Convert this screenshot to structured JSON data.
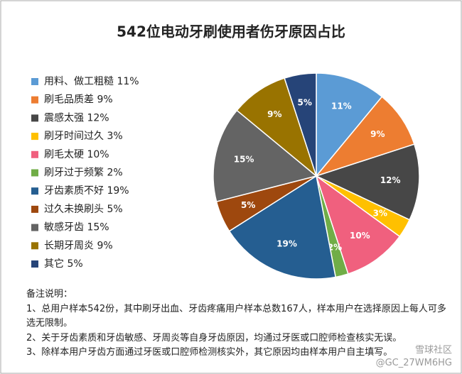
{
  "chart_data": {
    "type": "pie",
    "title": "542位电动牙刷使用者伤牙原因占比",
    "categories": [
      "用料、做工粗糙",
      "刷毛品质差",
      "震感太强",
      "刷牙时间过久",
      "刷毛太硬",
      "刷牙过于频繁",
      "牙齿素质不好",
      "过久未换刷头",
      "敏感牙齿",
      "长期牙周炎",
      "其它"
    ],
    "values": [
      11,
      9,
      12,
      3,
      10,
      2,
      19,
      5,
      15,
      9,
      5
    ],
    "value_labels": [
      "11%",
      "9%",
      "12%",
      "3%",
      "10%",
      "2%",
      "19%",
      "5%",
      "15%",
      "9%",
      "5%"
    ],
    "colors": [
      "#5b9bd5",
      "#ed7d31",
      "#474747",
      "#ffc000",
      "#f0607e",
      "#70ad47",
      "#255e91",
      "#9e480e",
      "#646464",
      "#997300",
      "#264478"
    ],
    "legend": "left",
    "notes": {
      "heading": "备注说明：",
      "lines": [
        "1、总用户样本542份，其中刷牙出血、牙齿疼痛用户样本总数167人，样本用户在选择原因上每人可多选无限制。",
        "2、关于牙齿素质和牙齿敏感、牙周炎等自身牙齿原因，均通过牙医或口腔师检查核实无误。",
        "3、除样本用户牙齿方面通过牙医或口腔师检测核实外，其它原因均由样本用户自主填写。"
      ]
    },
    "watermark": [
      "雪球社区",
      "@GC_27WM6HG"
    ]
  }
}
